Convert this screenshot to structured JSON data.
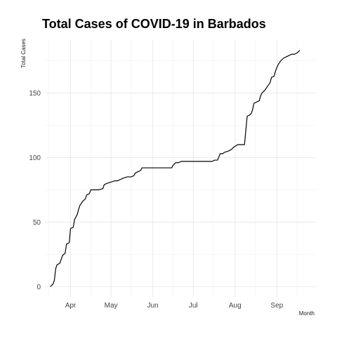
{
  "chart_data": {
    "type": "line",
    "title": "Total Cases of COVID-19 in Barbados",
    "xlabel": "Month",
    "ylabel": "Total Cases",
    "x_range": [
      "2020-03-13",
      "2020-09-30"
    ],
    "ylim": [
      -8,
      191
    ],
    "grid": true,
    "x_ticks": [
      {
        "date": "2020-04-01",
        "label": "Apr"
      },
      {
        "date": "2020-05-01",
        "label": "May"
      },
      {
        "date": "2020-06-01",
        "label": "Jun"
      },
      {
        "date": "2020-07-01",
        "label": "Jul"
      },
      {
        "date": "2020-08-01",
        "label": "Aug"
      },
      {
        "date": "2020-09-01",
        "label": "Sep"
      }
    ],
    "x_minor_ticks": [
      "2020-03-16",
      "2020-04-16",
      "2020-05-16",
      "2020-06-16",
      "2020-07-16",
      "2020-08-16",
      "2020-09-16"
    ],
    "y_ticks": [
      0,
      50,
      100,
      150
    ],
    "y_minor_ticks": [
      25,
      75,
      125,
      175
    ],
    "series": [
      {
        "color": "#000000",
        "points": [
          [
            "2020-03-17",
            0
          ],
          [
            "2020-03-18",
            1
          ],
          [
            "2020-03-19",
            2
          ],
          [
            "2020-03-20",
            5
          ],
          [
            "2020-03-21",
            14
          ],
          [
            "2020-03-22",
            17
          ],
          [
            "2020-03-24",
            18
          ],
          [
            "2020-03-26",
            24
          ],
          [
            "2020-03-28",
            26
          ],
          [
            "2020-03-29",
            33
          ],
          [
            "2020-03-31",
            34
          ],
          [
            "2020-04-01",
            45
          ],
          [
            "2020-04-03",
            46
          ],
          [
            "2020-04-04",
            52
          ],
          [
            "2020-04-06",
            56
          ],
          [
            "2020-04-07",
            60
          ],
          [
            "2020-04-08",
            63
          ],
          [
            "2020-04-10",
            66
          ],
          [
            "2020-04-11",
            67
          ],
          [
            "2020-04-12",
            68
          ],
          [
            "2020-04-13",
            71
          ],
          [
            "2020-04-15",
            72
          ],
          [
            "2020-04-16",
            75
          ],
          [
            "2020-04-19",
            75
          ],
          [
            "2020-04-22",
            75
          ],
          [
            "2020-04-25",
            76
          ],
          [
            "2020-04-26",
            79
          ],
          [
            "2020-04-28",
            80
          ],
          [
            "2020-05-01",
            81
          ],
          [
            "2020-05-04",
            82
          ],
          [
            "2020-05-06",
            82
          ],
          [
            "2020-05-08",
            83
          ],
          [
            "2020-05-10",
            84
          ],
          [
            "2020-05-13",
            85
          ],
          [
            "2020-05-16",
            85
          ],
          [
            "2020-05-18",
            86
          ],
          [
            "2020-05-19",
            88
          ],
          [
            "2020-05-21",
            89
          ],
          [
            "2020-05-23",
            90
          ],
          [
            "2020-05-24",
            92
          ],
          [
            "2020-05-30",
            92
          ],
          [
            "2020-06-07",
            92
          ],
          [
            "2020-06-15",
            92
          ],
          [
            "2020-06-16",
            94
          ],
          [
            "2020-06-18",
            96
          ],
          [
            "2020-06-20",
            96
          ],
          [
            "2020-06-22",
            97
          ],
          [
            "2020-06-30",
            97
          ],
          [
            "2020-07-10",
            97
          ],
          [
            "2020-07-15",
            97
          ],
          [
            "2020-07-17",
            98
          ],
          [
            "2020-07-19",
            98
          ],
          [
            "2020-07-21",
            103
          ],
          [
            "2020-07-23",
            103
          ],
          [
            "2020-07-24",
            104
          ],
          [
            "2020-07-27",
            105
          ],
          [
            "2020-07-29",
            106
          ],
          [
            "2020-07-31",
            108
          ],
          [
            "2020-08-03",
            110
          ],
          [
            "2020-08-08",
            110
          ],
          [
            "2020-08-10",
            132
          ],
          [
            "2020-08-12",
            133
          ],
          [
            "2020-08-13",
            134
          ],
          [
            "2020-08-14",
            137
          ],
          [
            "2020-08-15",
            142
          ],
          [
            "2020-08-17",
            143
          ],
          [
            "2020-08-19",
            144
          ],
          [
            "2020-08-20",
            148
          ],
          [
            "2020-08-21",
            150
          ],
          [
            "2020-08-23",
            152
          ],
          [
            "2020-08-25",
            155
          ],
          [
            "2020-08-27",
            158
          ],
          [
            "2020-08-28",
            162
          ],
          [
            "2020-08-30",
            163
          ],
          [
            "2020-08-31",
            167
          ],
          [
            "2020-09-02",
            172
          ],
          [
            "2020-09-04",
            175
          ],
          [
            "2020-09-06",
            177
          ],
          [
            "2020-09-08",
            178
          ],
          [
            "2020-09-10",
            179
          ],
          [
            "2020-09-12",
            180
          ],
          [
            "2020-09-14",
            180
          ],
          [
            "2020-09-16",
            181
          ],
          [
            "2020-09-17",
            182
          ],
          [
            "2020-09-18",
            183
          ]
        ]
      }
    ]
  }
}
